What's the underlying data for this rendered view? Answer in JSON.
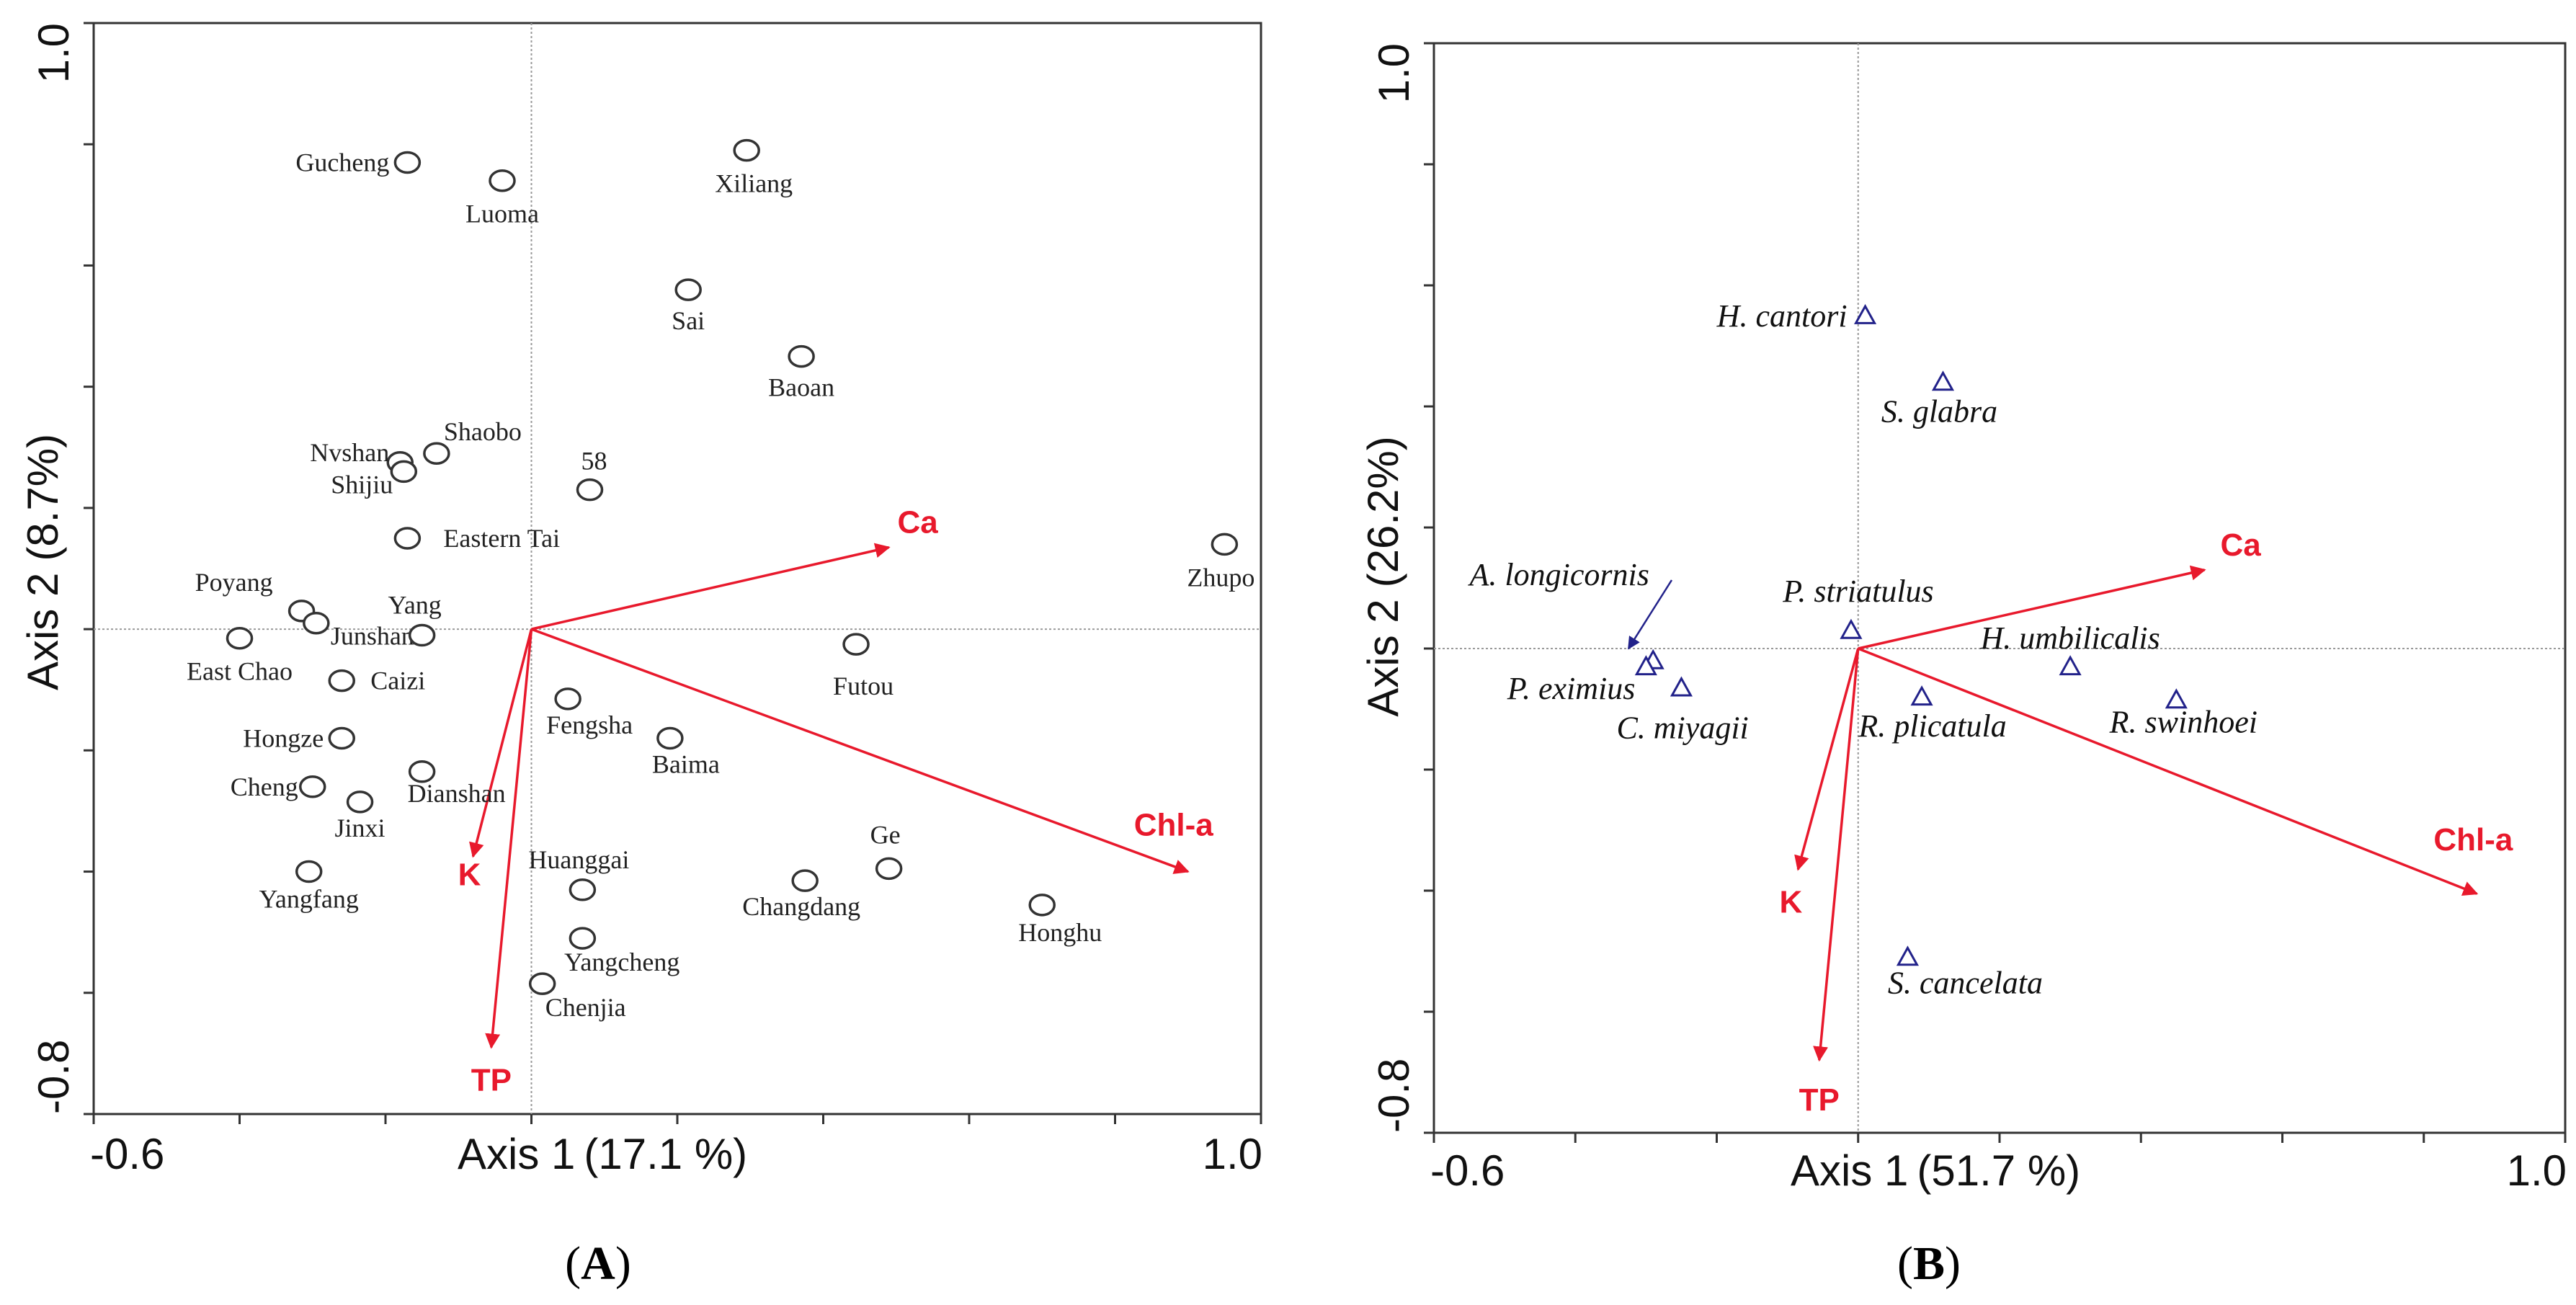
{
  "chart_data": [
    {
      "panel": "A",
      "type": "scatter",
      "caption_open": "(",
      "caption_letter": "A",
      "caption_close": ")",
      "xlabel_name": "Axis 1",
      "xlabel_pct": "(17.1 %)",
      "ylabel_name": "Axis 2",
      "ylabel_pct": "(8.7%)",
      "x_tick_min": "-0.6",
      "x_tick_max": "1.0",
      "y_tick_min": "-0.8",
      "y_tick_max": "1.0",
      "xlim": [
        -0.6,
        1.0
      ],
      "ylim": [
        -0.8,
        1.0
      ],
      "points": [
        {
          "label": "Gucheng",
          "x": -0.17,
          "y": 0.77
        },
        {
          "label": "Luoma",
          "x": -0.04,
          "y": 0.74
        },
        {
          "label": "Xiliang",
          "x": 0.295,
          "y": 0.79
        },
        {
          "label": "Sai",
          "x": 0.215,
          "y": 0.56
        },
        {
          "label": "Baoan",
          "x": 0.37,
          "y": 0.45
        },
        {
          "label": "Nvshan",
          "x": -0.18,
          "y": 0.275
        },
        {
          "label": "Shaobo",
          "x": -0.13,
          "y": 0.29
        },
        {
          "label": "Shijiu",
          "x": -0.175,
          "y": 0.26
        },
        {
          "label": "58",
          "x": 0.08,
          "y": 0.23
        },
        {
          "label": "Eastern Tai",
          "x": -0.17,
          "y": 0.15
        },
        {
          "label": "Zhupo",
          "x": 0.95,
          "y": 0.14
        },
        {
          "label": "Poyang",
          "x": -0.315,
          "y": 0.03
        },
        {
          "label": "Junshan",
          "x": -0.295,
          "y": 0.01
        },
        {
          "label": "Yang",
          "x": -0.15,
          "y": -0.01
        },
        {
          "label": "East Chao",
          "x": -0.4,
          "y": -0.015
        },
        {
          "label": "Futou",
          "x": 0.445,
          "y": -0.025
        },
        {
          "label": "Caizi",
          "x": -0.26,
          "y": -0.085
        },
        {
          "label": "Fengsha",
          "x": 0.05,
          "y": -0.115
        },
        {
          "label": "Hongze",
          "x": -0.26,
          "y": -0.18
        },
        {
          "label": "Baima",
          "x": 0.19,
          "y": -0.18
        },
        {
          "label": "Dianshan",
          "x": -0.15,
          "y": -0.235
        },
        {
          "label": "Cheng",
          "x": -0.3,
          "y": -0.26
        },
        {
          "label": "Jinxi",
          "x": -0.235,
          "y": -0.285
        },
        {
          "label": "Ge",
          "x": 0.49,
          "y": -0.395
        },
        {
          "label": "Yangfang",
          "x": -0.305,
          "y": -0.4
        },
        {
          "label": "Changdang",
          "x": 0.375,
          "y": -0.415
        },
        {
          "label": "Huanggai",
          "x": 0.07,
          "y": -0.43
        },
        {
          "label": "Honghu",
          "x": 0.7,
          "y": -0.455
        },
        {
          "label": "Yangcheng",
          "x": 0.07,
          "y": -0.51
        },
        {
          "label": "Chenjia",
          "x": 0.015,
          "y": -0.585
        }
      ],
      "vectors": [
        {
          "label": "Ca",
          "x": 0.49,
          "y": 0.135
        },
        {
          "label": "Chl-a",
          "x": 0.9,
          "y": -0.4
        },
        {
          "label": "K",
          "x": -0.08,
          "y": -0.375
        },
        {
          "label": "TP",
          "x": -0.055,
          "y": -0.69
        }
      ]
    },
    {
      "panel": "B",
      "type": "scatter",
      "caption_open": "(",
      "caption_letter": "B",
      "caption_close": ")",
      "xlabel_name": "Axis 1",
      "xlabel_pct": "(51.7 %)",
      "ylabel_name": "Axis 2",
      "ylabel_pct": "(26.2%)",
      "x_tick_min": "-0.6",
      "x_tick_max": "1.0",
      "y_tick_min": "-0.8",
      "y_tick_max": "1.0",
      "xlim": [
        -0.6,
        1.0
      ],
      "ylim": [
        -0.8,
        1.0
      ],
      "points": [
        {
          "label": "H. cantori",
          "x": 0.01,
          "y": 0.55
        },
        {
          "label": "S. glabra",
          "x": 0.12,
          "y": 0.44
        },
        {
          "label": "P. striatulus",
          "x": -0.01,
          "y": 0.03
        },
        {
          "label": "A. longicornis",
          "x": -0.29,
          "y": -0.02
        },
        {
          "label": "P. eximius",
          "x": -0.3,
          "y": -0.03
        },
        {
          "label": "C. miyagii",
          "x": -0.25,
          "y": -0.065
        },
        {
          "label": "R. plicatula",
          "x": 0.09,
          "y": -0.08
        },
        {
          "label": "H. umbilicalis",
          "x": 0.3,
          "y": -0.03
        },
        {
          "label": "R. swinhoei",
          "x": 0.45,
          "y": -0.085
        },
        {
          "label": "S. cancelata",
          "x": 0.07,
          "y": -0.51
        }
      ],
      "vectors": [
        {
          "label": "Ca",
          "x": 0.49,
          "y": 0.13
        },
        {
          "label": "Chl-a",
          "x": 0.875,
          "y": -0.405
        },
        {
          "label": "K",
          "x": -0.085,
          "y": -0.365
        },
        {
          "label": "TP",
          "x": -0.055,
          "y": -0.68
        }
      ]
    }
  ]
}
